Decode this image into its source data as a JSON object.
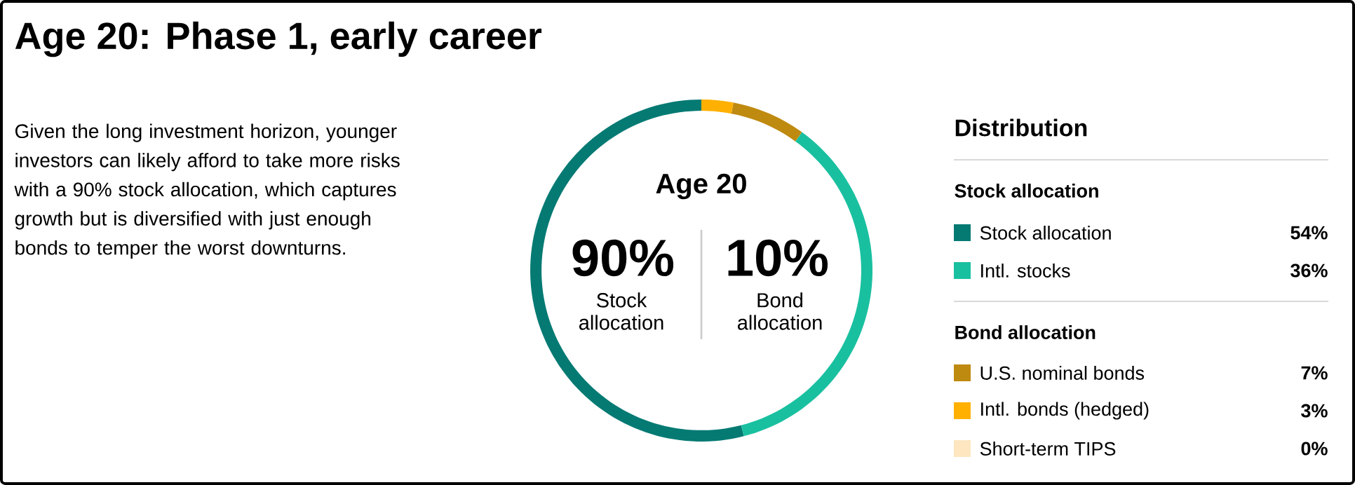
{
  "chart_data": {
    "type": "donut",
    "title": "Age 20: Phase 1, early career",
    "legend_title": "Distribution",
    "categories": [
      "Stock allocation",
      "Intl. stocks",
      "U.S. nominal bonds",
      "Intl. bonds (hedged)",
      "Short-term TIPS"
    ],
    "values": [
      54,
      36,
      7,
      3,
      0
    ],
    "colors": [
      "#047a73",
      "#19c0a0",
      "#bf8a10",
      "#ffb000",
      "#fde6c0"
    ],
    "value_labels": [
      "54%",
      "36%",
      "7%",
      "3%",
      "0%"
    ],
    "legend": "right",
    "annotations": [
      "Given the long investment horizon, younger investors can likely afford to take more risks with a 90% stock allocation, which captures growth but is diversified with just enough bonds to temper the worst downturns.",
      "Age 20",
      "90%",
      "Stock allocation",
      "10%",
      "Bond allocation",
      "Stock allocation",
      "Bond allocation"
    ]
  }
}
